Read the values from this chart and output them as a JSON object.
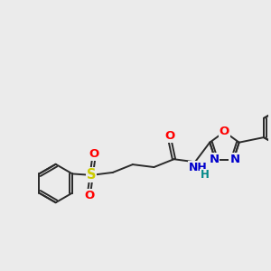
{
  "bg_color": "#ebebeb",
  "bond_color": "#2a2a2a",
  "bond_lw": 1.4,
  "atom_colors": {
    "O": "#ff0000",
    "N": "#0000cc",
    "H": "#008888",
    "S": "#cccc00"
  },
  "font_size": 9.5
}
